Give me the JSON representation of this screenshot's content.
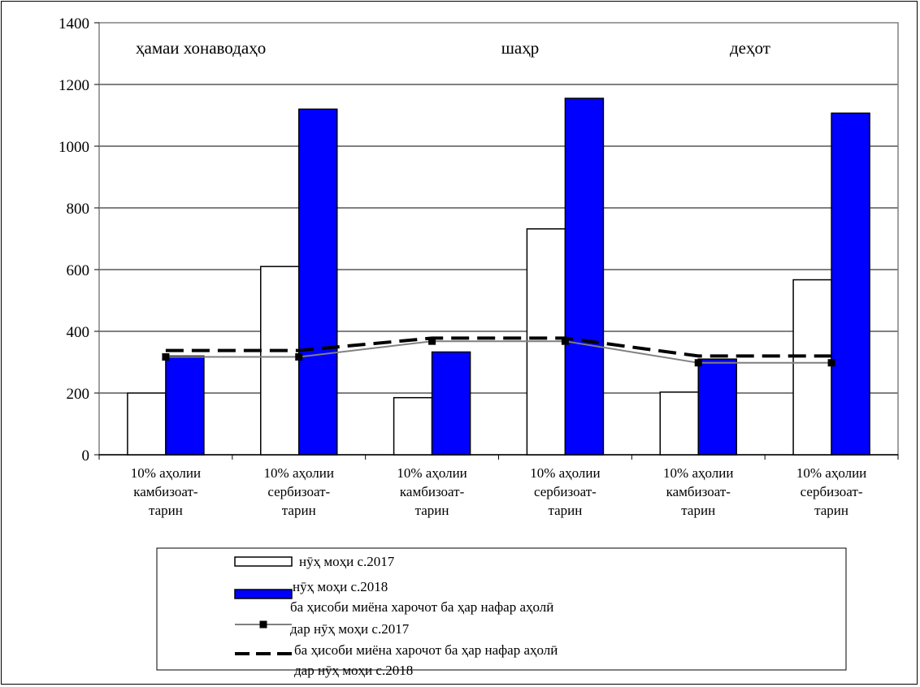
{
  "chart_data": {
    "type": "bar",
    "ylim": [
      0,
      1400
    ],
    "yticks": [
      0,
      200,
      400,
      600,
      800,
      1000,
      1200,
      1400
    ],
    "grid": true,
    "legend_position": "bottom",
    "group_labels": [
      "ҳамаи хонаводаҳо",
      "шаҳр",
      "деҳот"
    ],
    "categories": [
      [
        "10% аҳолии",
        "камбизоат-",
        "тарин"
      ],
      [
        "10% аҳолии",
        "сербизоат-",
        "тарин"
      ],
      [
        "10% аҳолии",
        "камбизоат-",
        "тарин"
      ],
      [
        "10% аҳолии",
        "сербизоат-",
        "тарин"
      ],
      [
        "10% аҳолии",
        "камбизоат-",
        "тарин"
      ],
      [
        "10% аҳолии",
        "сербизоат-",
        "тарин"
      ]
    ],
    "series": [
      {
        "name": "нӯҳ моҳи с.2017",
        "kind": "bar",
        "color": "#ffffff",
        "values": [
          200,
          610,
          185,
          732,
          203,
          567
        ]
      },
      {
        "name": "нӯҳ моҳи с.2018",
        "kind": "bar",
        "color": "#0000ff",
        "values": [
          320,
          1120,
          333,
          1155,
          310,
          1107
        ]
      },
      {
        "name": [
          "ба ҳисоби миёна харочот ба ҳар нафар аҳолӣ",
          "дар нӯҳ моҳи с.2017"
        ],
        "kind": "line",
        "color": "#808080",
        "marker": "square",
        "values": [
          317,
          317,
          368,
          368,
          298,
          298
        ]
      },
      {
        "name": [
          "ба ҳисоби миёна харочот ба ҳар нафар аҳолӣ",
          "дар нӯҳ моҳи с.2018"
        ],
        "kind": "line",
        "color": "#000000",
        "dash": true,
        "values": [
          338,
          338,
          378,
          378,
          320,
          320
        ]
      }
    ]
  }
}
